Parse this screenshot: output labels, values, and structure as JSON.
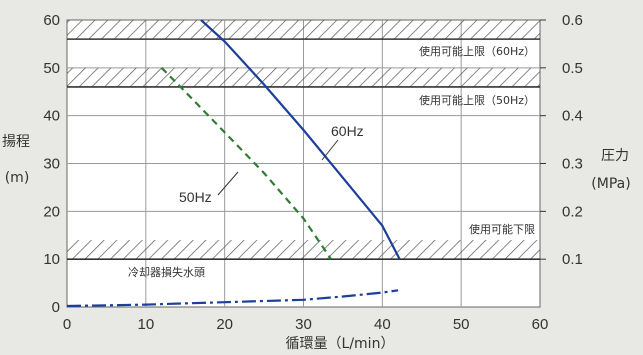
{
  "chart_data": {
    "type": "line",
    "xlabel": "循環量（L/min）",
    "ylabel_left": "揚程",
    "ylabel_left_unit": "(m)",
    "ylabel_right": "圧力",
    "ylabel_right_unit": "(MPa)",
    "xlim": [
      0,
      60
    ],
    "ylim_left": [
      0,
      60
    ],
    "ylim_right": [
      0,
      0.6
    ],
    "x_ticks": [
      "0",
      "10",
      "20",
      "30",
      "40",
      "50",
      "60"
    ],
    "y_left_ticks": [
      "0",
      "10",
      "20",
      "30",
      "40",
      "50",
      "60"
    ],
    "y_right_ticks": [
      "0.1",
      "0.2",
      "0.3",
      "0.4",
      "0.5",
      "0.6"
    ],
    "grid": true,
    "series": [
      {
        "name": "60Hz",
        "style": "solid",
        "color": "#1b3f9a",
        "x": [
          17,
          20,
          25,
          30,
          35,
          40,
          42.2
        ],
        "y": [
          60,
          55.5,
          46.5,
          37,
          27,
          17,
          10
        ]
      },
      {
        "name": "50Hz",
        "style": "dashed",
        "color": "#2e7d32",
        "x": [
          12,
          15,
          20,
          25,
          30,
          33.5
        ],
        "y": [
          50,
          45,
          36.5,
          28,
          18.5,
          10
        ]
      },
      {
        "name": "冷却器損失水頭",
        "style": "dashdot",
        "color": "#1b3f9a",
        "x": [
          0,
          10,
          20,
          30,
          35,
          40,
          42
        ],
        "y": [
          0.2,
          0.5,
          1,
          1.5,
          2.2,
          3,
          3.5
        ]
      }
    ],
    "bands": [
      {
        "label": "使用可能上限（60Hz）",
        "from": 56,
        "to": 60
      },
      {
        "label": "使用可能上限（50Hz）",
        "from": 46,
        "to": 50
      },
      {
        "label": "使用可能下限",
        "from": 10,
        "to": 14
      }
    ]
  },
  "colors": {
    "background": "#e8e8e5",
    "plot": "#ffffff",
    "grid": "#9a9a9a"
  }
}
